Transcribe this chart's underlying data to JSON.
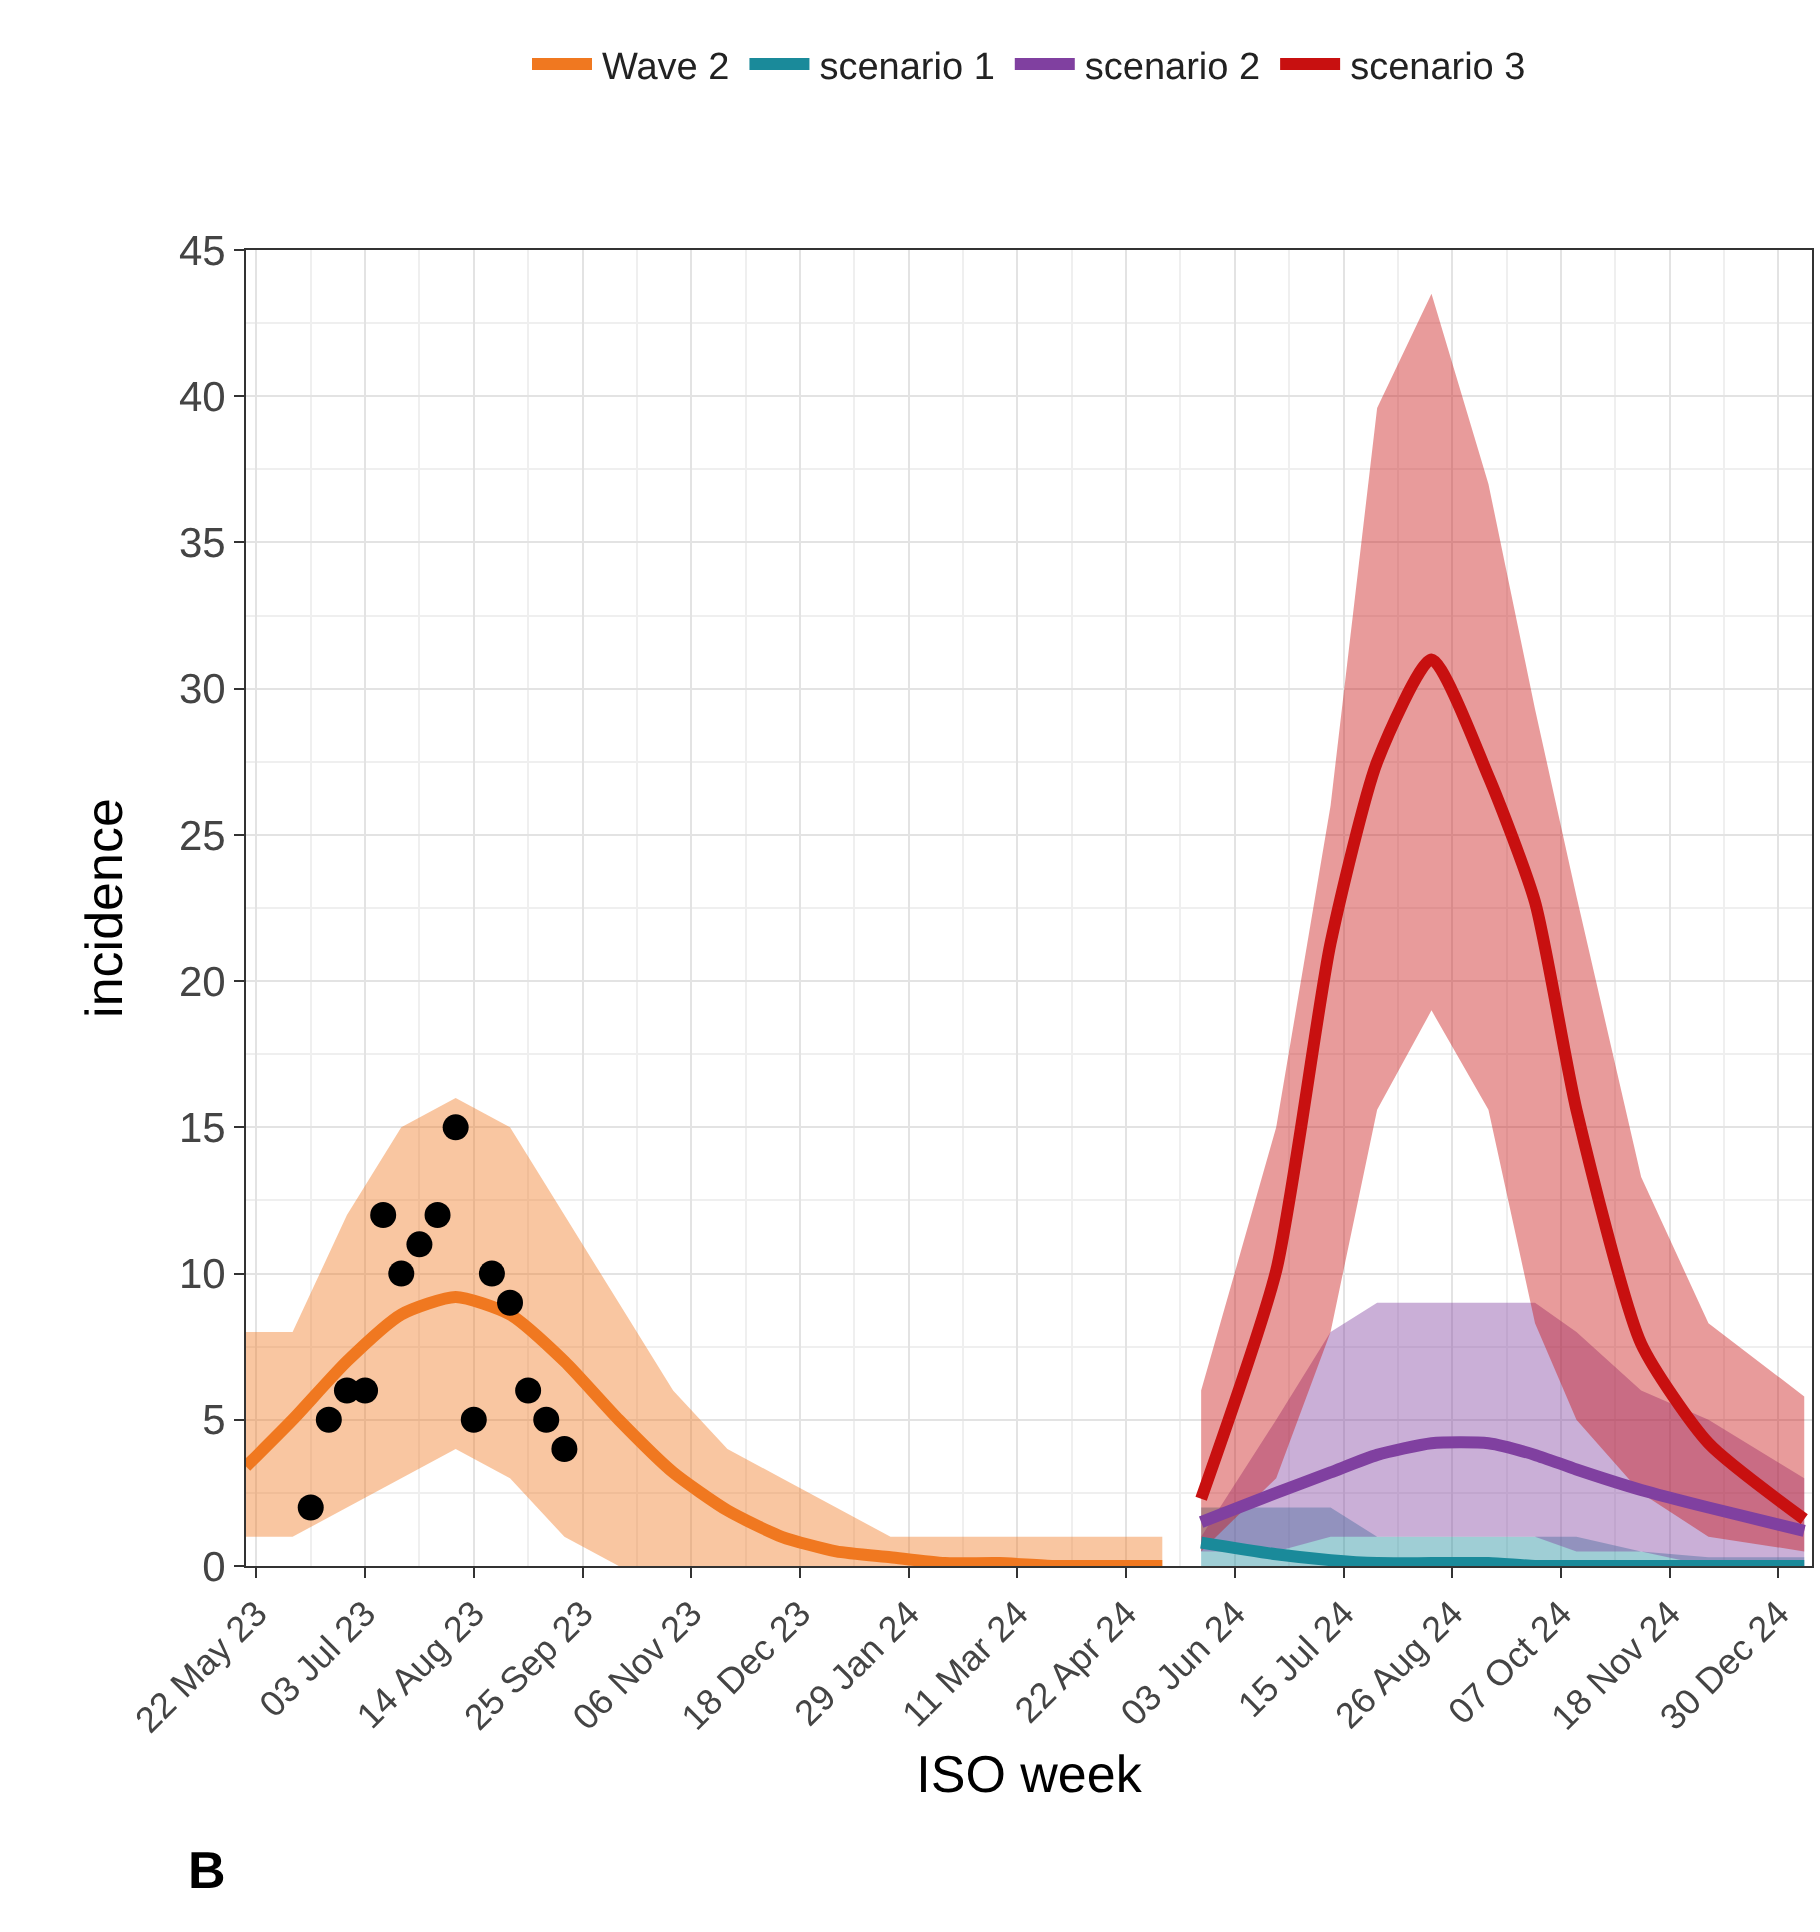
{
  "chart_data": {
    "type": "line",
    "xlabel": "ISO week",
    "ylabel": "incidence",
    "xlim": [
      "2023-05-18",
      "2025-01-12"
    ],
    "ylim": [
      0,
      45
    ],
    "xticks": [
      {
        "value": "2023-05-22",
        "label": "22 May 23"
      },
      {
        "value": "2023-07-03",
        "label": "03 Jul 23"
      },
      {
        "value": "2023-08-14",
        "label": "14 Aug 23"
      },
      {
        "value": "2023-09-25",
        "label": "25 Sep 23"
      },
      {
        "value": "2023-11-06",
        "label": "06 Nov 23"
      },
      {
        "value": "2023-12-18",
        "label": "18 Dec 23"
      },
      {
        "value": "2024-01-29",
        "label": "29 Jan 24"
      },
      {
        "value": "2024-03-11",
        "label": "11 Mar 24"
      },
      {
        "value": "2024-04-22",
        "label": "22 Apr 24"
      },
      {
        "value": "2024-06-03",
        "label": "03 Jun 24"
      },
      {
        "value": "2024-07-15",
        "label": "15 Jul 24"
      },
      {
        "value": "2024-08-26",
        "label": "26 Aug 24"
      },
      {
        "value": "2024-10-07",
        "label": "07 Oct 24"
      },
      {
        "value": "2024-11-18",
        "label": "18 Nov 24"
      },
      {
        "value": "2024-12-30",
        "label": "30 Dec 24"
      }
    ],
    "yticks": [
      0,
      5,
      10,
      15,
      20,
      25,
      30,
      35,
      40,
      45
    ],
    "grid": true,
    "legend": "top",
    "line_style": "solid",
    "annotations": [
      "B"
    ],
    "series": [
      {
        "name": "Wave 2",
        "color": "#f07820",
        "x": [
          "2023-05-18",
          "2023-06-05",
          "2023-06-26",
          "2023-07-17",
          "2023-08-07",
          "2023-08-28",
          "2023-09-18",
          "2023-10-09",
          "2023-10-30",
          "2023-11-20",
          "2023-12-11",
          "2024-01-01",
          "2024-01-22",
          "2024-02-12",
          "2024-03-04",
          "2024-03-25",
          "2024-04-15",
          "2024-05-06"
        ],
        "values": [
          3.4,
          5.0,
          7.0,
          8.6,
          9.2,
          8.6,
          7.0,
          5.0,
          3.2,
          1.9,
          1.0,
          0.5,
          0.3,
          0.1,
          0.1,
          0.0,
          0.0,
          0.0
        ],
        "upper": [
          8,
          8,
          12,
          15,
          16,
          15,
          12,
          9,
          6,
          4,
          3,
          2,
          1,
          1,
          1,
          1,
          1,
          1
        ],
        "lower": [
          1,
          1,
          2,
          3,
          4,
          3,
          1,
          0,
          0,
          0,
          0,
          0,
          0,
          0,
          0,
          0,
          0,
          0
        ]
      },
      {
        "name": "scenario 1",
        "color": "#1a8a9a",
        "x": [
          "2024-05-21",
          "2024-06-19",
          "2024-07-10",
          "2024-07-28",
          "2024-08-18",
          "2024-09-09",
          "2024-09-27",
          "2024-10-13",
          "2024-11-07",
          "2024-12-03",
          "2025-01-09"
        ],
        "values": [
          0.8,
          0.4,
          0.2,
          0.1,
          0.1,
          0.1,
          0.0,
          0.0,
          0.0,
          0.0,
          0.0
        ],
        "upper": [
          2,
          2,
          2,
          1,
          1,
          1,
          1,
          1,
          0.5,
          0.3,
          0.3
        ],
        "lower": [
          0,
          0,
          0,
          0,
          0,
          0,
          0,
          0,
          0,
          0,
          0
        ]
      },
      {
        "name": "scenario 2",
        "color": "#8040a0",
        "x": [
          "2024-05-21",
          "2024-06-19",
          "2024-07-10",
          "2024-07-28",
          "2024-08-18",
          "2024-09-09",
          "2024-09-27",
          "2024-10-13",
          "2024-11-07",
          "2024-12-03",
          "2025-01-09"
        ],
        "values": [
          1.5,
          2.5,
          3.2,
          3.8,
          4.2,
          4.2,
          3.8,
          3.3,
          2.6,
          2.0,
          1.2
        ],
        "upper": [
          1,
          5,
          8,
          9,
          9,
          9,
          9,
          8,
          6,
          5,
          3
        ],
        "lower": [
          0.5,
          0.5,
          1,
          1,
          1,
          1,
          1,
          0.5,
          0.5,
          0,
          0
        ]
      },
      {
        "name": "scenario 3",
        "color": "#c81010",
        "x": [
          "2024-05-21",
          "2024-06-19",
          "2024-07-10",
          "2024-07-28",
          "2024-08-18",
          "2024-09-09",
          "2024-09-27",
          "2024-10-13",
          "2024-11-07",
          "2024-12-03",
          "2025-01-09"
        ],
        "values": [
          2.3,
          10.1,
          21.3,
          27.5,
          31.0,
          27.0,
          22.7,
          15.6,
          7.6,
          4.2,
          1.6
        ],
        "upper": [
          6.0,
          15,
          26,
          39.6,
          43.5,
          37,
          29.3,
          22.9,
          13.3,
          8.3,
          5.8
        ],
        "lower": [
          0.5,
          3,
          8,
          15.6,
          19,
          15.6,
          8.3,
          5,
          2.5,
          1,
          0.5
        ]
      },
      {
        "type": "scatter",
        "color": "#000000",
        "marker": "circle",
        "x": [
          "2023-06-12",
          "2023-06-19",
          "2023-06-26",
          "2023-07-03",
          "2023-07-10",
          "2023-07-17",
          "2023-07-24",
          "2023-07-31",
          "2023-08-07",
          "2023-08-14",
          "2023-08-21",
          "2023-08-28",
          "2023-09-04",
          "2023-09-11",
          "2023-09-18"
        ],
        "values": [
          2,
          5,
          6,
          6,
          12,
          10,
          11,
          12,
          15,
          5,
          10,
          9,
          6,
          5,
          4
        ]
      }
    ]
  }
}
